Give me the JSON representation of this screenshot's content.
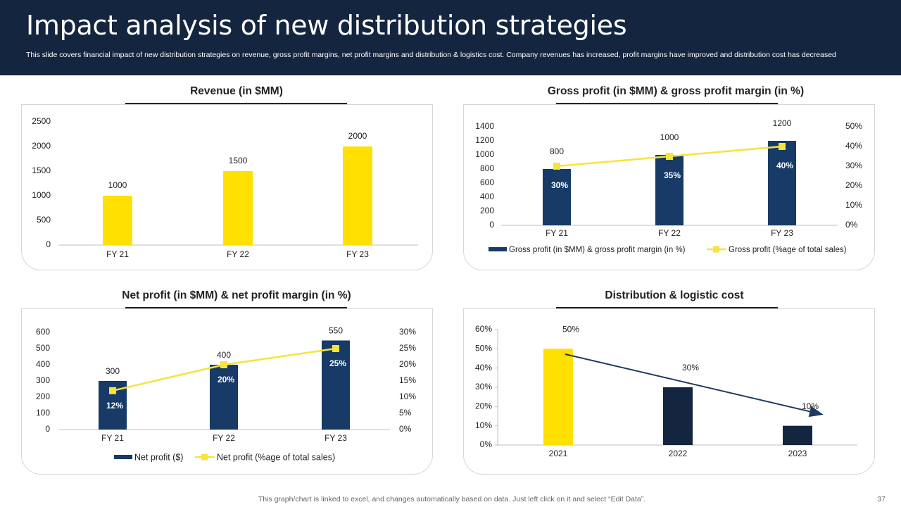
{
  "header": {
    "title": "Impact analysis of new distribution strategies",
    "subtitle": "This slide covers financial impact of new distribution strategies on revenue, gross profit margins, net profit margins and distribution & logistics cost. Company revenues has increased, profit margins have improved and distribution cost has decreased"
  },
  "footer": {
    "note": "This graph/chart is linked to excel,  and changes automatically based on data. Just left click on it and select “Edit Data”.",
    "page_number": "37"
  },
  "colors": {
    "navy": "#14253f",
    "bar_navy": "#173a66",
    "yellow": "#ffe000",
    "line_yellow": "#f5e43a",
    "grid": "#d9d9d9"
  },
  "chart_data": [
    {
      "id": "revenue",
      "type": "bar",
      "title": "Revenue (in $MM)",
      "categories": [
        "FY 21",
        "FY 22",
        "FY 23"
      ],
      "values": [
        1000,
        1500,
        2000
      ],
      "ylim": [
        0,
        2500
      ],
      "yticks": [
        0,
        500,
        1000,
        1500,
        2000,
        2500
      ],
      "xlabel": "",
      "ylabel": ""
    },
    {
      "id": "gross",
      "type": "bar+line",
      "title": "Gross profit (in $MM) & gross profit margin (in %)",
      "categories": [
        "FY 21",
        "FY 22",
        "FY 23"
      ],
      "series": [
        {
          "name": "Gross profit (in $MM) & gross profit margin (in %)",
          "type": "bar",
          "values": [
            800,
            1000,
            1200
          ]
        },
        {
          "name": "Gross profit (%age of total sales)",
          "type": "line",
          "axis": "secondary",
          "values": [
            30,
            35,
            40
          ],
          "labels": [
            "30%",
            "35%",
            "40%"
          ]
        }
      ],
      "ylim": [
        0,
        1400
      ],
      "yticks": [
        0,
        200,
        400,
        600,
        800,
        1000,
        1200,
        1400
      ],
      "y2lim": [
        0,
        50
      ],
      "y2ticks": [
        "0%",
        "10%",
        "20%",
        "30%",
        "40%",
        "50%"
      ],
      "legend": "bottom"
    },
    {
      "id": "net",
      "type": "bar+line",
      "title": "Net profit (in $MM) & net profit margin (in %)",
      "categories": [
        "FY 21",
        "FY 22",
        "FY 23"
      ],
      "series": [
        {
          "name": "Net profit ($)",
          "type": "bar",
          "values": [
            300,
            400,
            550
          ]
        },
        {
          "name": "Net profit (%age of total sales)",
          "type": "line",
          "axis": "secondary",
          "values": [
            12,
            20,
            25
          ],
          "labels": [
            "12%",
            "20%",
            "25%"
          ]
        }
      ],
      "ylim": [
        0,
        600
      ],
      "yticks": [
        0,
        100,
        200,
        300,
        400,
        500,
        600
      ],
      "y2lim": [
        0,
        30
      ],
      "y2ticks": [
        "0%",
        "5%",
        "10%",
        "15%",
        "20%",
        "25%",
        "30%"
      ],
      "legend": "bottom"
    },
    {
      "id": "dist",
      "type": "bar",
      "title": "Distribution & logistic cost",
      "categories": [
        "2021",
        "2022",
        "2023"
      ],
      "values": [
        50,
        30,
        10
      ],
      "labels": [
        "50%",
        "30%",
        "10%"
      ],
      "ylim": [
        0,
        60
      ],
      "yticks": [
        "0%",
        "10%",
        "20%",
        "30%",
        "40%",
        "50%",
        "60%"
      ],
      "annotation": "downward trend arrow"
    }
  ]
}
